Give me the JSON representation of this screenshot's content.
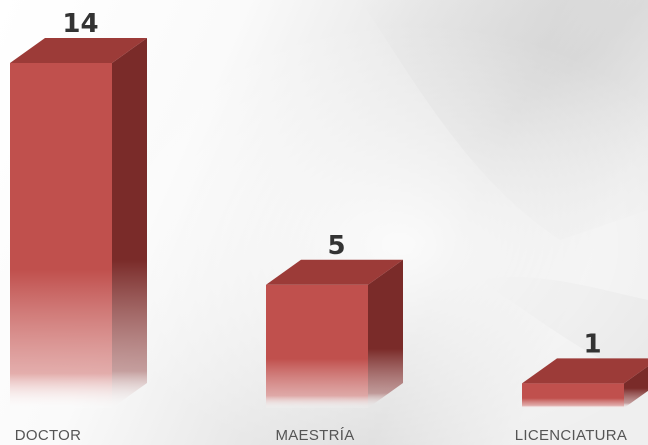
{
  "chart_data": {
    "type": "bar",
    "categories": [
      "DOCTOR",
      "MAESTRÍA",
      "LICENCIATURA"
    ],
    "values": [
      14,
      5,
      1
    ],
    "data_labels": [
      "14",
      "5",
      "1"
    ],
    "title": "",
    "xlabel": "",
    "ylabel": "",
    "ylim": [
      0,
      14
    ],
    "grid": false,
    "legend": "none",
    "style": "3d-column",
    "colors": {
      "bar_front": "#c0504d",
      "bar_top": "#9c3b38",
      "bar_side": "#7a2b29",
      "label_text": "#555555",
      "value_text": "#333333"
    }
  }
}
